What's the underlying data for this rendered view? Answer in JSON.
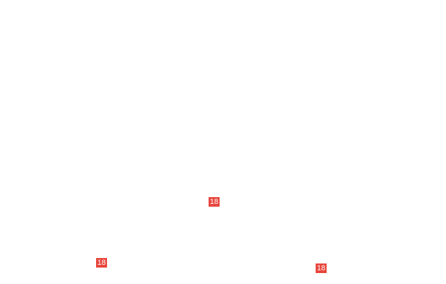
{
  "badges": [
    {
      "label": "18"
    },
    {
      "label": "18"
    },
    {
      "label": "18"
    }
  ],
  "colors": {
    "badge_bg": "#e8453c",
    "background": "#ffffff"
  }
}
